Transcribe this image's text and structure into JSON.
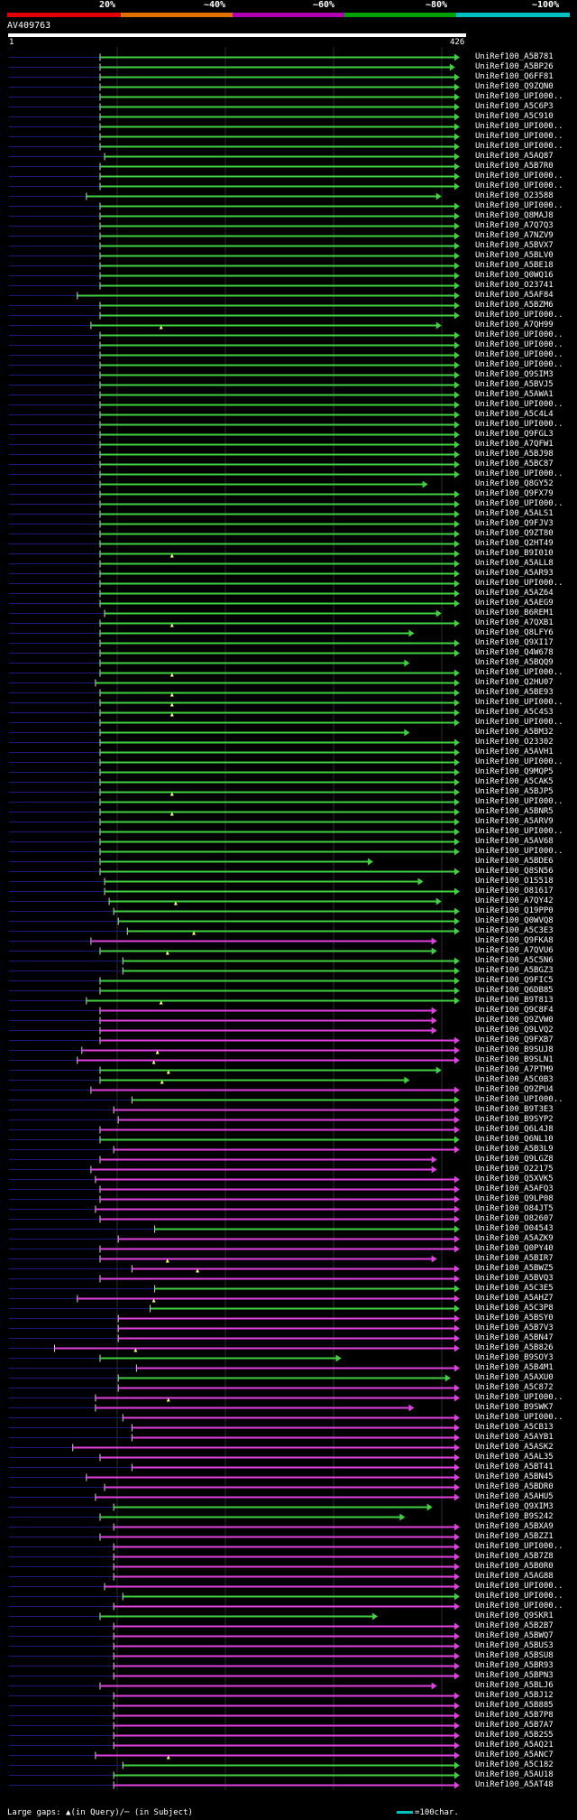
{
  "colors": {
    "magenta": "#e040e0",
    "green": "#40d040",
    "blue": "#1a1a78",
    "grid": "#2c2c2c"
  },
  "header": {
    "query_id": "AV409763",
    "ruler_start": "1",
    "ruler_end": "426"
  },
  "pct_labels": [
    "20%",
    "~40%",
    "~60%",
    "~80%",
    "~100%"
  ],
  "legend": {
    "gaps_text": "Large gaps: ▲(in Query)/─ (in Subject)",
    "scale_text": "=100char."
  },
  "hits": [
    [
      "UniRef100_A5B781",
      "g",
      0.2,
      0.99,
      0
    ],
    [
      "UniRef100_A5BP26",
      "g",
      0.2,
      0.98,
      0
    ],
    [
      "UniRef100_Q6FF81",
      "g",
      0.2,
      0.99,
      0
    ],
    [
      "UniRef100_Q9ZQN0",
      "g",
      0.2,
      0.99,
      0
    ],
    [
      "UniRef100_UPI000..",
      "g",
      0.2,
      0.99,
      0
    ],
    [
      "UniRef100_A5C6P3",
      "g",
      0.2,
      0.99,
      0
    ],
    [
      "UniRef100_A5C910",
      "g",
      0.2,
      0.99,
      0
    ],
    [
      "UniRef100_UPI000..",
      "g",
      0.2,
      0.99,
      0
    ],
    [
      "UniRef100_UPI000..",
      "g",
      0.2,
      0.99,
      0
    ],
    [
      "UniRef100_UPI000..",
      "g",
      0.2,
      0.99,
      0
    ],
    [
      "UniRef100_A5AQ87",
      "g",
      0.21,
      0.99,
      0
    ],
    [
      "UniRef100_A5B7R0",
      "g",
      0.2,
      0.99,
      0
    ],
    [
      "UniRef100_UPI000..",
      "g",
      0.2,
      0.99,
      0
    ],
    [
      "UniRef100_UPI000..",
      "g",
      0.2,
      0.99,
      0
    ],
    [
      "UniRef100_O23588",
      "g",
      0.17,
      0.95,
      0
    ],
    [
      "UniRef100_UPI000..",
      "g",
      0.2,
      0.99,
      0
    ],
    [
      "UniRef100_Q8MAJ8",
      "g",
      0.2,
      0.99,
      0
    ],
    [
      "UniRef100_A7Q7Q3",
      "g",
      0.2,
      0.99,
      0
    ],
    [
      "UniRef100_A7NZV9",
      "g",
      0.2,
      0.99,
      0
    ],
    [
      "UniRef100_A5BVX7",
      "g",
      0.2,
      0.99,
      0
    ],
    [
      "UniRef100_A5BLV0",
      "g",
      0.2,
      0.99,
      0
    ],
    [
      "UniRef100_A5BE18",
      "g",
      0.2,
      0.99,
      0
    ],
    [
      "UniRef100_Q0WQ16",
      "g",
      0.2,
      0.99,
      0
    ],
    [
      "UniRef100_O23741",
      "g",
      0.2,
      0.99,
      0
    ],
    [
      "UniRef100_A5AF84",
      "g",
      0.15,
      0.99,
      0
    ],
    [
      "UniRef100_A5BZM6",
      "g",
      0.2,
      0.99,
      0
    ],
    [
      "UniRef100_UPI000..",
      "g",
      0.2,
      0.99,
      0
    ],
    [
      "UniRef100_A7QH99",
      "g",
      0.18,
      0.95,
      1
    ],
    [
      "UniRef100_UPI000..",
      "g",
      0.2,
      0.99,
      0
    ],
    [
      "UniRef100_UPI000..",
      "g",
      0.2,
      0.99,
      0
    ],
    [
      "UniRef100_UPI000..",
      "g",
      0.2,
      0.99,
      0
    ],
    [
      "UniRef100_UPI000..",
      "g",
      0.2,
      0.99,
      0
    ],
    [
      "UniRef100_Q9SIM3",
      "g",
      0.2,
      0.99,
      0
    ],
    [
      "UniRef100_A5BVJ5",
      "g",
      0.2,
      0.99,
      0
    ],
    [
      "UniRef100_A5AWA1",
      "g",
      0.2,
      0.99,
      0
    ],
    [
      "UniRef100_UPI000..",
      "g",
      0.2,
      0.99,
      0
    ],
    [
      "UniRef100_A5C4L4",
      "g",
      0.2,
      0.99,
      0
    ],
    [
      "UniRef100_UPI000..",
      "g",
      0.2,
      0.99,
      0
    ],
    [
      "UniRef100_Q9FGL3",
      "g",
      0.2,
      0.99,
      0
    ],
    [
      "UniRef100_A7QFW1",
      "g",
      0.2,
      0.99,
      0
    ],
    [
      "UniRef100_A5BJ98",
      "g",
      0.2,
      0.99,
      0
    ],
    [
      "UniRef100_A5BC87",
      "g",
      0.2,
      0.99,
      0
    ],
    [
      "UniRef100_UPI000..",
      "g",
      0.2,
      0.99,
      0
    ],
    [
      "UniRef100_Q8GY52",
      "g",
      0.2,
      0.92,
      0
    ],
    [
      "UniRef100_Q9FX79",
      "g",
      0.2,
      0.99,
      0
    ],
    [
      "UniRef100_UPI000..",
      "g",
      0.2,
      0.99,
      0
    ],
    [
      "UniRef100_A5ALS1",
      "g",
      0.2,
      0.99,
      0
    ],
    [
      "UniRef100_Q9FJV3",
      "g",
      0.2,
      0.99,
      0
    ],
    [
      "UniRef100_Q9ZT80",
      "g",
      0.2,
      0.99,
      0
    ],
    [
      "UniRef100_Q2HT49",
      "g",
      0.2,
      0.99,
      0
    ],
    [
      "UniRef100_B9I010",
      "g",
      0.2,
      0.99,
      1
    ],
    [
      "UniRef100_A5ALL8",
      "g",
      0.2,
      0.99,
      0
    ],
    [
      "UniRef100_A5AR93",
      "g",
      0.2,
      0.99,
      0
    ],
    [
      "UniRef100_UPI000..",
      "g",
      0.2,
      0.99,
      0
    ],
    [
      "UniRef100_A5AZ64",
      "g",
      0.2,
      0.99,
      0
    ],
    [
      "UniRef100_A5AEG9",
      "g",
      0.2,
      0.99,
      0
    ],
    [
      "UniRef100_B6REM1",
      "g",
      0.21,
      0.95,
      0
    ],
    [
      "UniRef100_A7QXB1",
      "g",
      0.2,
      0.99,
      1
    ],
    [
      "UniRef100_Q8LFY6",
      "g",
      0.2,
      0.89,
      0
    ],
    [
      "UniRef100_Q9XI17",
      "g",
      0.2,
      0.99,
      0
    ],
    [
      "UniRef100_Q4W678",
      "g",
      0.2,
      0.99,
      0
    ],
    [
      "UniRef100_A5BQQ9",
      "g",
      0.2,
      0.88,
      0
    ],
    [
      "UniRef100_UPI000..",
      "g",
      0.2,
      0.99,
      1
    ],
    [
      "UniRef100_Q2HU07",
      "g",
      0.19,
      0.99,
      0
    ],
    [
      "UniRef100_A5BE93",
      "g",
      0.2,
      0.99,
      1
    ],
    [
      "UniRef100_UPI000..",
      "g",
      0.2,
      0.99,
      1
    ],
    [
      "UniRef100_A5C4S3",
      "g",
      0.2,
      0.99,
      1
    ],
    [
      "UniRef100_UPI000..",
      "g",
      0.2,
      0.99,
      0
    ],
    [
      "UniRef100_A5BM32",
      "g",
      0.2,
      0.88,
      0
    ],
    [
      "UniRef100_O23302",
      "g",
      0.2,
      0.99,
      0
    ],
    [
      "UniRef100_A5AVH1",
      "g",
      0.2,
      0.99,
      0
    ],
    [
      "UniRef100_UPI000..",
      "g",
      0.2,
      0.99,
      0
    ],
    [
      "UniRef100_Q9MQP5",
      "g",
      0.2,
      0.99,
      0
    ],
    [
      "UniRef100_A5CAK5",
      "g",
      0.2,
      0.99,
      0
    ],
    [
      "UniRef100_A5BJP5",
      "g",
      0.2,
      0.99,
      1
    ],
    [
      "UniRef100_UPI000..",
      "g",
      0.2,
      0.99,
      0
    ],
    [
      "UniRef100_A5BNR5",
      "g",
      0.2,
      0.99,
      1
    ],
    [
      "UniRef100_A5ARV9",
      "g",
      0.2,
      0.99,
      0
    ],
    [
      "UniRef100_UPI000..",
      "g",
      0.2,
      0.99,
      0
    ],
    [
      "UniRef100_A5AV68",
      "g",
      0.2,
      0.99,
      0
    ],
    [
      "UniRef100_UPI000..",
      "g",
      0.2,
      0.99,
      0
    ],
    [
      "UniRef100_A5BDE6",
      "g",
      0.2,
      0.8,
      0
    ],
    [
      "UniRef100_Q8SN56",
      "g",
      0.2,
      0.99,
      0
    ],
    [
      "UniRef100_O1S518",
      "g",
      0.21,
      0.91,
      0
    ],
    [
      "UniRef100_O81617",
      "g",
      0.21,
      0.99,
      0
    ],
    [
      "UniRef100_A7QY42",
      "g",
      0.22,
      0.95,
      1
    ],
    [
      "UniRef100_Q19PP0",
      "g",
      0.23,
      0.99,
      0
    ],
    [
      "UniRef100_Q0WVQ8",
      "g",
      0.24,
      0.99,
      0
    ],
    [
      "UniRef100_A5C3E3",
      "g",
      0.26,
      0.99,
      1
    ],
    [
      "UniRef100_Q9FKA8",
      "m",
      0.18,
      0.94,
      0
    ],
    [
      "UniRef100_A7QVU6",
      "g",
      0.2,
      0.94,
      1
    ],
    [
      "UniRef100_A5C5N6",
      "g",
      0.25,
      0.99,
      0
    ],
    [
      "UniRef100_A5BGZ3",
      "g",
      0.25,
      0.99,
      0
    ],
    [
      "UniRef100_Q9FIC5",
      "g",
      0.2,
      0.99,
      0
    ],
    [
      "UniRef100_Q6DB85",
      "g",
      0.2,
      0.99,
      0
    ],
    [
      "UniRef100_B9T813",
      "g",
      0.17,
      0.99,
      1
    ],
    [
      "UniRef100_Q9C8F4",
      "m",
      0.2,
      0.94,
      0
    ],
    [
      "UniRef100_Q9ZVW0",
      "m",
      0.2,
      0.94,
      0
    ],
    [
      "UniRef100_Q9LVQ2",
      "m",
      0.2,
      0.94,
      0
    ],
    [
      "UniRef100_Q9FXB7",
      "m",
      0.2,
      0.99,
      0
    ],
    [
      "UniRef100_B9SUJ8",
      "m",
      0.16,
      0.99,
      1
    ],
    [
      "UniRef100_B9SLN1",
      "m",
      0.15,
      0.99,
      1
    ],
    [
      "UniRef100_A7PTM9",
      "g",
      0.2,
      0.95,
      1
    ],
    [
      "UniRef100_A5C0B3",
      "g",
      0.2,
      0.88,
      1
    ],
    [
      "UniRef100_Q9ZPU4",
      "m",
      0.18,
      0.99,
      0
    ],
    [
      "UniRef100_UPI000..",
      "g",
      0.27,
      0.99,
      0
    ],
    [
      "UniRef100_B9T3E3",
      "m",
      0.23,
      0.99,
      0
    ],
    [
      "UniRef100_B9SYP2",
      "m",
      0.24,
      0.99,
      0
    ],
    [
      "UniRef100_Q6L4J8",
      "m",
      0.2,
      0.99,
      0
    ],
    [
      "UniRef100_Q6NL10",
      "g",
      0.2,
      0.99,
      0
    ],
    [
      "UniRef100_A5B3L9",
      "m",
      0.23,
      0.99,
      0
    ],
    [
      "UniRef100_Q9LGZ8",
      "m",
      0.2,
      0.94,
      0
    ],
    [
      "UniRef100_O22175",
      "m",
      0.18,
      0.94,
      0
    ],
    [
      "UniRef100_Q5XVK5",
      "m",
      0.19,
      0.99,
      0
    ],
    [
      "UniRef100_A5AFQ3",
      "m",
      0.2,
      0.99,
      0
    ],
    [
      "UniRef100_Q9LP08",
      "m",
      0.2,
      0.99,
      0
    ],
    [
      "UniRef100_O84JT5",
      "m",
      0.19,
      0.99,
      0
    ],
    [
      "UniRef100_O82607",
      "m",
      0.2,
      0.99,
      0
    ],
    [
      "UniRef100_O04543",
      "g",
      0.32,
      0.99,
      0
    ],
    [
      "UniRef100_A5AZK9",
      "m",
      0.24,
      0.99,
      0
    ],
    [
      "UniRef100_Q0PY40",
      "m",
      0.2,
      0.99,
      0
    ],
    [
      "UniRef100_A5BIR7",
      "m",
      0.2,
      0.94,
      1
    ],
    [
      "UniRef100_A5BWZ5",
      "m",
      0.27,
      0.99,
      1
    ],
    [
      "UniRef100_A5BVQ3",
      "m",
      0.2,
      0.99,
      0
    ],
    [
      "UniRef100_A5C3E5",
      "g",
      0.32,
      0.99,
      0
    ],
    [
      "UniRef100_A5AHZ7",
      "m",
      0.15,
      0.99,
      1
    ],
    [
      "UniRef100_A5C3P8",
      "g",
      0.31,
      0.99,
      0
    ],
    [
      "UniRef100_A5BSY0",
      "m",
      0.24,
      0.99,
      0
    ],
    [
      "UniRef100_A5B7V3",
      "m",
      0.24,
      0.99,
      0
    ],
    [
      "UniRef100_A5BN47",
      "m",
      0.24,
      0.99,
      0
    ],
    [
      "UniRef100_A5B826",
      "m",
      0.1,
      0.99,
      1
    ],
    [
      "UniRef100_B9SOY3",
      "g",
      0.2,
      0.73,
      0
    ],
    [
      "UniRef100_A5B4M1",
      "m",
      0.28,
      0.99,
      0
    ],
    [
      "UniRef100_A5AXU0",
      "g",
      0.24,
      0.97,
      0
    ],
    [
      "UniRef100_A5C872",
      "m",
      0.24,
      0.99,
      0
    ],
    [
      "UniRef100_UPI000..",
      "m",
      0.19,
      0.99,
      1
    ],
    [
      "UniRef100_B9SWK7",
      "m",
      0.19,
      0.89,
      0
    ],
    [
      "UniRef100_UPI000..",
      "m",
      0.25,
      0.99,
      0
    ],
    [
      "UniRef100_A5CB13",
      "m",
      0.27,
      0.99,
      0
    ],
    [
      "UniRef100_A5AYB1",
      "m",
      0.27,
      0.99,
      0
    ],
    [
      "UniRef100_A5ASK2",
      "m",
      0.14,
      0.99,
      0
    ],
    [
      "UniRef100_A5AL35",
      "m",
      0.2,
      0.99,
      0
    ],
    [
      "UniRef100_A5BT41",
      "m",
      0.27,
      0.99,
      0
    ],
    [
      "UniRef100_A5BN45",
      "m",
      0.17,
      0.99,
      0
    ],
    [
      "UniRef100_A5BDR0",
      "m",
      0.21,
      0.99,
      0
    ],
    [
      "UniRef100_A5AHU5",
      "m",
      0.19,
      0.99,
      0
    ],
    [
      "UniRef100_Q9XIM3",
      "g",
      0.23,
      0.93,
      0
    ],
    [
      "UniRef100_B9S242",
      "g",
      0.2,
      0.87,
      0
    ],
    [
      "UniRef100_A5BXA9",
      "m",
      0.23,
      0.99,
      0
    ],
    [
      "UniRef100_A5BZZ1",
      "m",
      0.2,
      0.99,
      0
    ],
    [
      "UniRef100_UPI000..",
      "m",
      0.23,
      0.99,
      0
    ],
    [
      "UniRef100_A5B7Z8",
      "m",
      0.23,
      0.99,
      0
    ],
    [
      "UniRef100_A5B0R0",
      "m",
      0.23,
      0.99,
      0
    ],
    [
      "UniRef100_A5AG88",
      "m",
      0.23,
      0.99,
      0
    ],
    [
      "UniRef100_UPI000..",
      "m",
      0.21,
      0.99,
      0
    ],
    [
      "UniRef100_UPI000..",
      "g",
      0.25,
      0.99,
      0
    ],
    [
      "UniRef100_UPI000..",
      "m",
      0.23,
      0.99,
      0
    ],
    [
      "UniRef100_Q9SKR1",
      "g",
      0.2,
      0.81,
      0
    ],
    [
      "UniRef100_A5B2B7",
      "m",
      0.23,
      0.99,
      0
    ],
    [
      "UniRef100_A5BWQ7",
      "m",
      0.23,
      0.99,
      0
    ],
    [
      "UniRef100_A5BUS3",
      "m",
      0.23,
      0.99,
      0
    ],
    [
      "UniRef100_A5BSU8",
      "m",
      0.23,
      0.99,
      0
    ],
    [
      "UniRef100_A5BR93",
      "m",
      0.23,
      0.99,
      0
    ],
    [
      "UniRef100_A5BPN3",
      "m",
      0.23,
      0.99,
      0
    ],
    [
      "UniRef100_A5BLJ6",
      "m",
      0.2,
      0.94,
      0
    ],
    [
      "UniRef100_A5BJ12",
      "m",
      0.23,
      0.99,
      0
    ],
    [
      "UniRef100_A5B885",
      "m",
      0.23,
      0.99,
      0
    ],
    [
      "UniRef100_A5B7P8",
      "m",
      0.23,
      0.99,
      0
    ],
    [
      "UniRef100_A5B7A7",
      "m",
      0.23,
      0.99,
      0
    ],
    [
      "UniRef100_A5B2S5",
      "m",
      0.23,
      0.99,
      0
    ],
    [
      "UniRef100_A5AQ21",
      "m",
      0.23,
      0.99,
      0
    ],
    [
      "UniRef100_A5ANC7",
      "m",
      0.19,
      0.99,
      1
    ],
    [
      "UniRef100_A5C182",
      "g",
      0.25,
      0.99,
      0
    ],
    [
      "UniRef100_A5AU18",
      "g",
      0.23,
      0.99,
      0
    ],
    [
      "UniRef100_A5AT48",
      "m",
      0.23,
      0.99,
      0
    ]
  ]
}
